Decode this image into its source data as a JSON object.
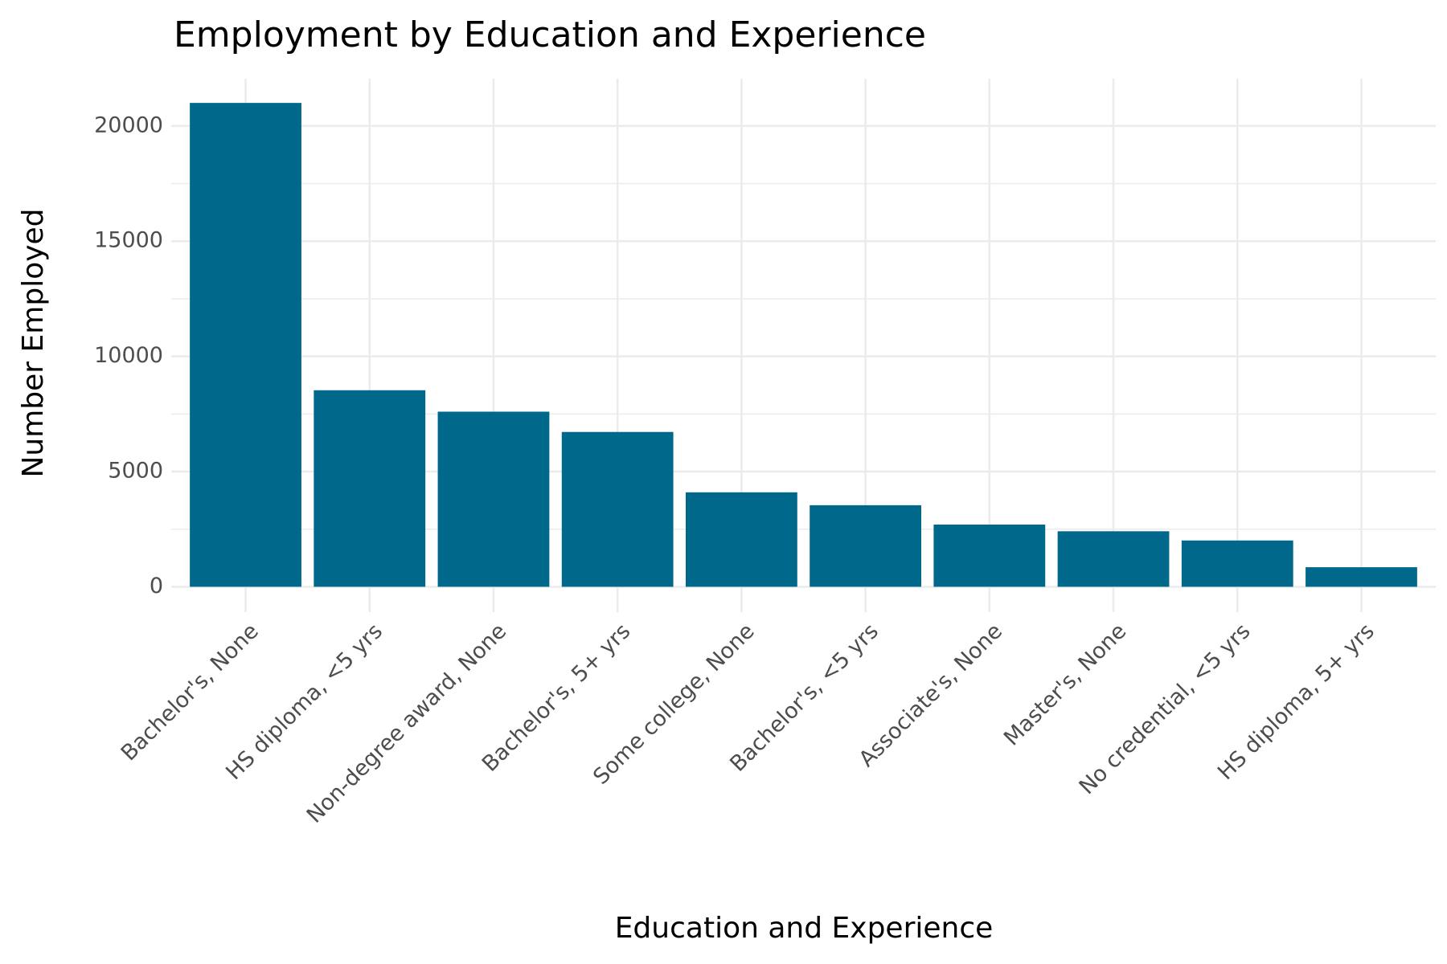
{
  "chart_data": {
    "type": "bar",
    "title": "Employment by Education and Experience",
    "x_label": "Education and Experience",
    "y_label": "Number Employed",
    "categories": [
      "Bachelor's, None",
      "HS diploma, <5 yrs",
      "Non-degree award, None",
      "Bachelor's, 5+ yrs",
      "Some college, None",
      "Bachelor's, <5 yrs",
      "Associate's, None",
      "Master's, None",
      "No credential, <5 yrs",
      "HS diploma, 5+ yrs"
    ],
    "values": [
      21000,
      8530,
      7600,
      6720,
      4100,
      3540,
      2700,
      2410,
      2010,
      850
    ],
    "color": "#00688b",
    "ylim": [
      -1100,
      22050
    ],
    "yticks": [
      0,
      5000,
      10000,
      15000,
      20000
    ],
    "minor_yticks": [
      2500,
      7500,
      12500,
      17500
    ],
    "grid": true
  }
}
